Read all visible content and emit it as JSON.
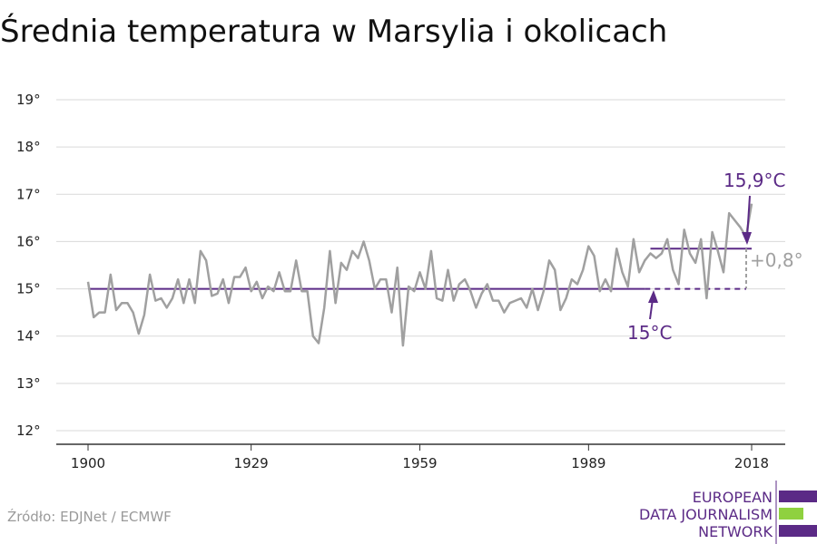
{
  "chart_data": {
    "type": "line",
    "title": "Średnia temperatura w Marsylia i okolicach",
    "ylim": [
      12,
      19
    ],
    "xlim": [
      1900,
      2018
    ],
    "x_ticks": [
      {
        "value": 1900,
        "label": "1900"
      },
      {
        "value": 1929,
        "label": "1929"
      },
      {
        "value": 1959,
        "label": "1959"
      },
      {
        "value": 1989,
        "label": "1989"
      },
      {
        "value": 2018,
        "label": "2018"
      }
    ],
    "y_ticks": [
      {
        "value": 12,
        "label": "12°"
      },
      {
        "value": 13,
        "label": "13°"
      },
      {
        "value": 14,
        "label": "14°"
      },
      {
        "value": 15,
        "label": "15°"
      },
      {
        "value": 16,
        "label": "16°"
      },
      {
        "value": 17,
        "label": "17°"
      },
      {
        "value": 18,
        "label": "18°"
      },
      {
        "value": 19,
        "label": "19°"
      }
    ],
    "grid": true,
    "series": [
      {
        "color": "#a0a0a0",
        "x_start": 1900,
        "values": [
          15.15,
          14.4,
          14.5,
          14.5,
          15.3,
          14.55,
          14.7,
          14.7,
          14.5,
          14.05,
          14.45,
          15.3,
          14.75,
          14.8,
          14.6,
          14.8,
          15.2,
          14.7,
          15.2,
          14.7,
          15.8,
          15.6,
          14.85,
          14.9,
          15.2,
          14.7,
          15.25,
          15.25,
          15.45,
          14.95,
          15.15,
          14.8,
          15.05,
          14.95,
          15.35,
          14.95,
          14.95,
          15.6,
          14.95,
          14.95,
          14.0,
          13.85,
          14.6,
          15.8,
          14.7,
          15.55,
          15.4,
          15.8,
          15.65,
          16.0,
          15.6,
          15.0,
          15.2,
          15.2,
          14.5,
          15.45,
          13.8,
          15.05,
          14.95,
          15.35,
          15.0,
          15.8,
          14.8,
          14.75,
          15.4,
          14.75,
          15.1,
          15.2,
          14.95,
          14.6,
          14.9,
          15.1,
          14.75,
          14.75,
          14.5,
          14.7,
          14.75,
          14.8,
          14.6,
          15.0,
          14.55,
          14.95,
          15.6,
          15.4,
          14.55,
          14.8,
          15.2,
          15.1,
          15.4,
          15.9,
          15.7,
          14.95,
          15.2,
          14.95,
          15.85,
          15.35,
          15.05,
          16.05,
          15.35,
          15.6,
          15.75,
          15.65,
          15.75,
          16.05,
          15.4,
          15.1,
          16.25,
          15.75,
          15.55,
          16.05,
          14.8,
          16.2,
          15.8,
          15.35,
          16.6,
          16.45,
          16.3,
          16.1,
          16.8
        ]
      }
    ],
    "reference_lines": [
      {
        "name": "baseline",
        "value": 15.0,
        "from": 1900,
        "to": 1999,
        "dashed_to": 2018,
        "color": "#5b2a86"
      },
      {
        "name": "recent",
        "value": 15.85,
        "from": 2000,
        "to": 2018,
        "color": "#5b2a86"
      }
    ],
    "annotations": {
      "recent_label": "15,9°C",
      "baseline_label": "15°C",
      "difference_label": "+0,8°"
    }
  },
  "source": "Źródło: EDJNet / ECMWF",
  "logo": {
    "lines": [
      "EUROPEAN",
      "DATA JOURNALISM",
      "NETWORK"
    ],
    "colors": [
      "#5b2a86",
      "#8fd13f",
      "#5b2a86"
    ]
  },
  "colors": {
    "accent": "#5b2a86",
    "series": "#a0a0a0",
    "grid": "#d9d9d9"
  }
}
